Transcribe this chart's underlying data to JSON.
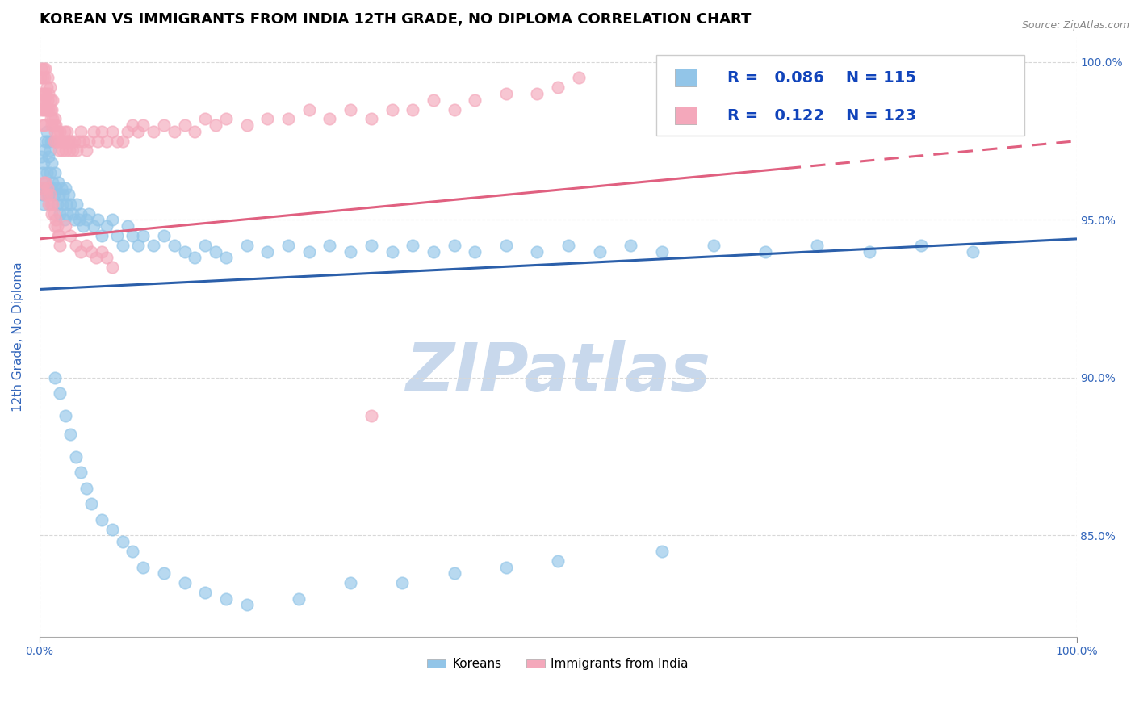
{
  "title": "KOREAN VS IMMIGRANTS FROM INDIA 12TH GRADE, NO DIPLOMA CORRELATION CHART",
  "source": "Source: ZipAtlas.com",
  "ylabel": "12th Grade, No Diploma",
  "xlim": [
    0.0,
    1.0
  ],
  "ylim": [
    0.818,
    1.008
  ],
  "right_yticks": [
    0.85,
    0.9,
    0.95,
    1.0
  ],
  "right_yticklabels": [
    "85.0%",
    "90.0%",
    "95.0%",
    "100.0%"
  ],
  "korean_R": 0.086,
  "korean_N": 115,
  "india_R": 0.122,
  "india_N": 123,
  "korean_color": "#92C5E8",
  "india_color": "#F4A8BB",
  "trend_korean_color": "#2B5FAA",
  "trend_india_color": "#E06080",
  "background_color": "#FFFFFF",
  "grid_color": "#D8D8D8",
  "legend_text_color": "#1144BB",
  "title_fontsize": 13,
  "axis_label_fontsize": 11,
  "tick_fontsize": 10,
  "legend_fontsize": 14,
  "watermark_text": "ZIPatlas",
  "watermark_color": "#C8D8EC",
  "watermark_fontsize": 60,
  "korean_trend_x0": 0.0,
  "korean_trend_y0": 0.928,
  "korean_trend_x1": 1.0,
  "korean_trend_y1": 0.944,
  "india_trend_x0": 0.0,
  "india_trend_y0": 0.944,
  "india_trend_x1": 1.0,
  "india_trend_y1": 0.975,
  "korean_points_x": [
    0.002,
    0.002,
    0.003,
    0.003,
    0.004,
    0.004,
    0.005,
    0.005,
    0.006,
    0.006,
    0.007,
    0.007,
    0.008,
    0.008,
    0.009,
    0.009,
    0.01,
    0.01,
    0.011,
    0.011,
    0.012,
    0.013,
    0.014,
    0.015,
    0.016,
    0.017,
    0.018,
    0.019,
    0.02,
    0.021,
    0.022,
    0.023,
    0.024,
    0.025,
    0.026,
    0.027,
    0.028,
    0.03,
    0.032,
    0.034,
    0.036,
    0.038,
    0.04,
    0.042,
    0.045,
    0.048,
    0.052,
    0.056,
    0.06,
    0.065,
    0.07,
    0.075,
    0.08,
    0.085,
    0.09,
    0.095,
    0.1,
    0.11,
    0.12,
    0.13,
    0.14,
    0.15,
    0.16,
    0.17,
    0.18,
    0.2,
    0.22,
    0.24,
    0.26,
    0.28,
    0.3,
    0.32,
    0.34,
    0.36,
    0.38,
    0.4,
    0.42,
    0.45,
    0.48,
    0.51,
    0.54,
    0.57,
    0.6,
    0.65,
    0.7,
    0.75,
    0.8,
    0.85,
    0.9,
    0.94,
    0.015,
    0.02,
    0.025,
    0.03,
    0.035,
    0.04,
    0.045,
    0.05,
    0.06,
    0.07,
    0.08,
    0.09,
    0.1,
    0.12,
    0.14,
    0.16,
    0.18,
    0.2,
    0.25,
    0.3,
    0.35,
    0.4,
    0.45,
    0.5,
    0.6
  ],
  "korean_points_y": [
    0.97,
    0.96,
    0.965,
    0.958,
    0.968,
    0.955,
    0.972,
    0.96,
    0.975,
    0.962,
    0.978,
    0.965,
    0.975,
    0.96,
    0.97,
    0.958,
    0.972,
    0.965,
    0.975,
    0.96,
    0.968,
    0.962,
    0.958,
    0.965,
    0.96,
    0.955,
    0.962,
    0.958,
    0.952,
    0.96,
    0.955,
    0.958,
    0.95,
    0.96,
    0.955,
    0.952,
    0.958,
    0.955,
    0.952,
    0.95,
    0.955,
    0.95,
    0.952,
    0.948,
    0.95,
    0.952,
    0.948,
    0.95,
    0.945,
    0.948,
    0.95,
    0.945,
    0.942,
    0.948,
    0.945,
    0.942,
    0.945,
    0.942,
    0.945,
    0.942,
    0.94,
    0.938,
    0.942,
    0.94,
    0.938,
    0.942,
    0.94,
    0.942,
    0.94,
    0.942,
    0.94,
    0.942,
    0.94,
    0.942,
    0.94,
    0.942,
    0.94,
    0.942,
    0.94,
    0.942,
    0.94,
    0.942,
    0.94,
    0.942,
    0.94,
    0.942,
    0.94,
    0.942,
    0.94,
    0.998,
    0.9,
    0.895,
    0.888,
    0.882,
    0.875,
    0.87,
    0.865,
    0.86,
    0.855,
    0.852,
    0.848,
    0.845,
    0.84,
    0.838,
    0.835,
    0.832,
    0.83,
    0.828,
    0.83,
    0.835,
    0.835,
    0.838,
    0.84,
    0.842,
    0.845
  ],
  "india_points_x": [
    0.001,
    0.001,
    0.002,
    0.002,
    0.002,
    0.003,
    0.003,
    0.003,
    0.004,
    0.004,
    0.004,
    0.005,
    0.005,
    0.005,
    0.006,
    0.006,
    0.006,
    0.007,
    0.007,
    0.008,
    0.008,
    0.009,
    0.009,
    0.01,
    0.01,
    0.011,
    0.011,
    0.012,
    0.012,
    0.013,
    0.013,
    0.014,
    0.014,
    0.015,
    0.015,
    0.016,
    0.016,
    0.017,
    0.018,
    0.019,
    0.02,
    0.021,
    0.022,
    0.023,
    0.024,
    0.025,
    0.026,
    0.027,
    0.028,
    0.029,
    0.03,
    0.032,
    0.034,
    0.036,
    0.038,
    0.04,
    0.042,
    0.045,
    0.048,
    0.052,
    0.056,
    0.06,
    0.065,
    0.07,
    0.075,
    0.08,
    0.085,
    0.09,
    0.095,
    0.1,
    0.11,
    0.12,
    0.13,
    0.14,
    0.15,
    0.16,
    0.17,
    0.18,
    0.2,
    0.22,
    0.24,
    0.26,
    0.28,
    0.3,
    0.32,
    0.34,
    0.36,
    0.38,
    0.4,
    0.42,
    0.45,
    0.48,
    0.5,
    0.52,
    0.003,
    0.004,
    0.005,
    0.006,
    0.007,
    0.008,
    0.009,
    0.01,
    0.011,
    0.012,
    0.013,
    0.014,
    0.015,
    0.016,
    0.017,
    0.018,
    0.019,
    0.02,
    0.025,
    0.03,
    0.035,
    0.04,
    0.045,
    0.05,
    0.055,
    0.06,
    0.065,
    0.07,
    0.32
  ],
  "india_points_y": [
    0.995,
    0.988,
    0.998,
    0.99,
    0.985,
    0.995,
    0.988,
    0.98,
    0.998,
    0.99,
    0.985,
    0.995,
    0.988,
    0.98,
    0.998,
    0.99,
    0.985,
    0.992,
    0.985,
    0.995,
    0.988,
    0.99,
    0.985,
    0.992,
    0.985,
    0.988,
    0.982,
    0.985,
    0.98,
    0.988,
    0.982,
    0.98,
    0.975,
    0.982,
    0.978,
    0.98,
    0.975,
    0.978,
    0.975,
    0.972,
    0.978,
    0.975,
    0.972,
    0.975,
    0.978,
    0.972,
    0.975,
    0.978,
    0.975,
    0.972,
    0.975,
    0.972,
    0.975,
    0.972,
    0.975,
    0.978,
    0.975,
    0.972,
    0.975,
    0.978,
    0.975,
    0.978,
    0.975,
    0.978,
    0.975,
    0.975,
    0.978,
    0.98,
    0.978,
    0.98,
    0.978,
    0.98,
    0.978,
    0.98,
    0.978,
    0.982,
    0.98,
    0.982,
    0.98,
    0.982,
    0.982,
    0.985,
    0.982,
    0.985,
    0.982,
    0.985,
    0.985,
    0.988,
    0.985,
    0.988,
    0.99,
    0.99,
    0.992,
    0.995,
    0.96,
    0.962,
    0.958,
    0.962,
    0.958,
    0.96,
    0.955,
    0.958,
    0.955,
    0.952,
    0.955,
    0.952,
    0.948,
    0.95,
    0.948,
    0.945,
    0.945,
    0.942,
    0.948,
    0.945,
    0.942,
    0.94,
    0.942,
    0.94,
    0.938,
    0.94,
    0.938,
    0.935,
    0.888
  ]
}
